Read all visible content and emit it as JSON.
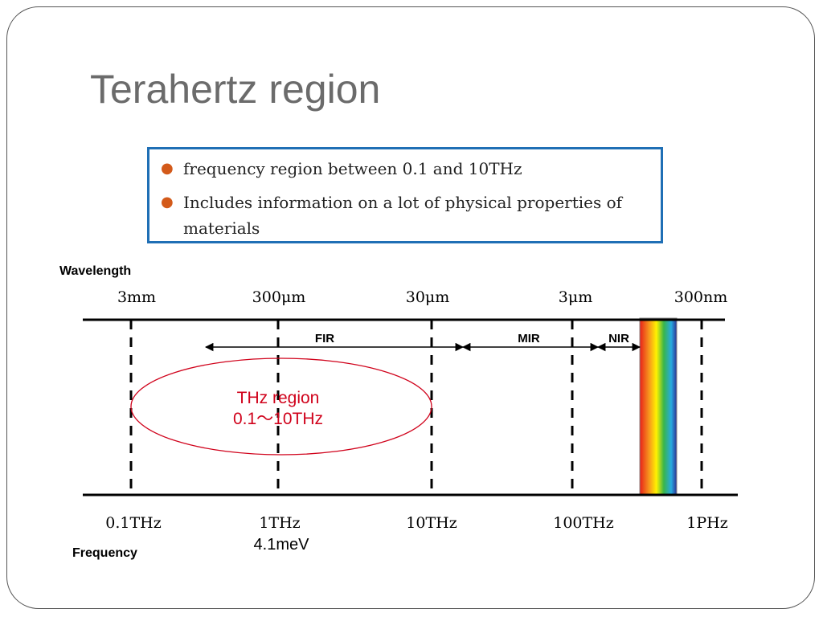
{
  "slide": {
    "title": "Terahertz region",
    "bullets": [
      "frequency region between 0.1 and 10THz",
      "Includes information on a lot of physical properties of materials"
    ],
    "bullet_color": "#d35a1a",
    "box_border_color": "#1f6fb5"
  },
  "diagram": {
    "wavelength_label": "Wavelength",
    "frequency_label": "Frequency",
    "wavelength_ticks": [
      "3mm",
      "300μm",
      "30μm",
      "3μm",
      "300nm"
    ],
    "frequency_ticks": [
      "0.1THz",
      "1THz",
      "10THz",
      "100THz",
      "1PHz"
    ],
    "bands": [
      "FIR",
      "MIR",
      "NIR"
    ],
    "thz_region": {
      "line1": "THz region",
      "line2": "0.1～10THz",
      "color": "#d0021b"
    },
    "energy_note": "4.1meV"
  }
}
